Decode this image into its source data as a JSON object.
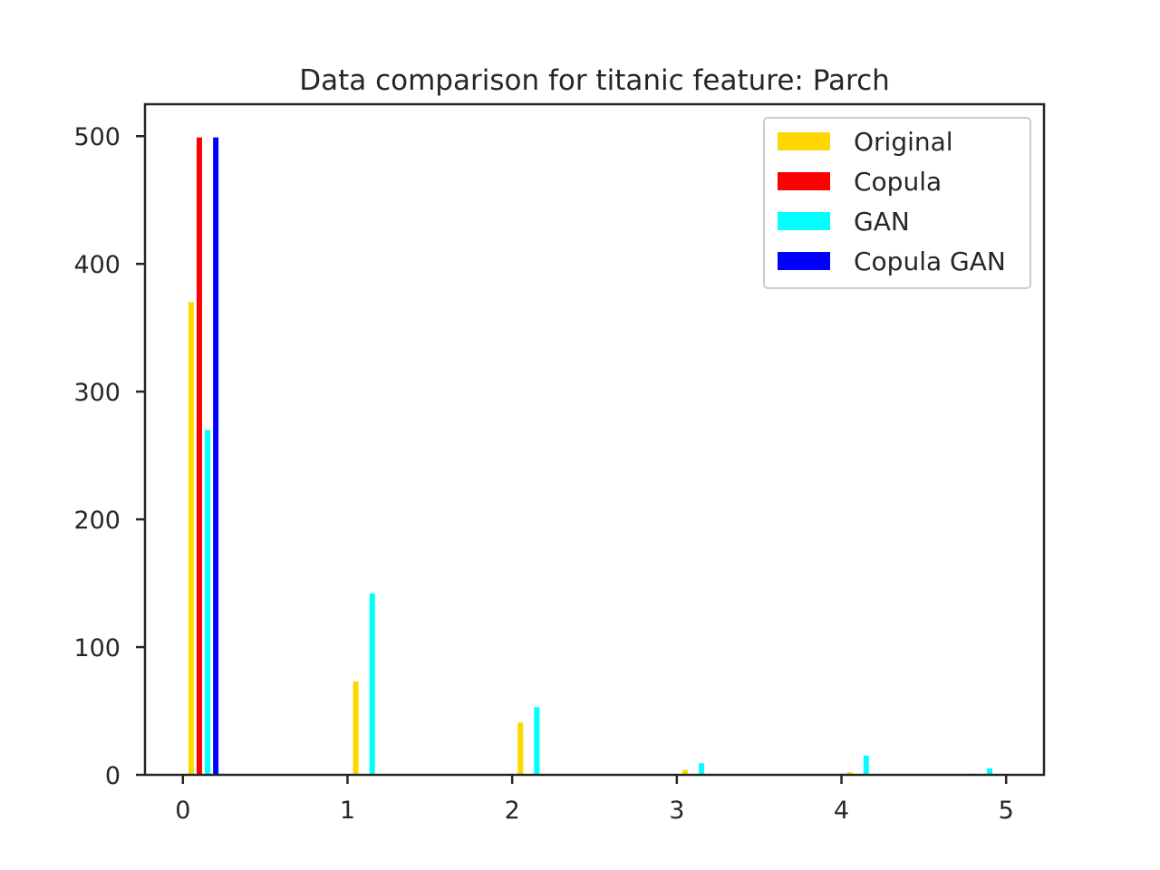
{
  "chart_data": {
    "type": "bar",
    "title": "Data comparison for titanic feature: Parch",
    "xlabel": "",
    "ylabel": "",
    "xlim": [
      -0.23,
      5.23
    ],
    "ylim": [
      0,
      525
    ],
    "x_ticks": [
      0,
      1,
      2,
      3,
      4,
      5
    ],
    "y_ticks": [
      0,
      100,
      200,
      300,
      400,
      500
    ],
    "grid": false,
    "legend_position": "top-right",
    "series": [
      {
        "name": "Original",
        "color": "#FFD700",
        "points": [
          {
            "x": 0.05,
            "y": 370
          },
          {
            "x": 1.05,
            "y": 73
          },
          {
            "x": 2.05,
            "y": 41
          },
          {
            "x": 3.05,
            "y": 4
          },
          {
            "x": 4.05,
            "y": 2
          },
          {
            "x": 4.8,
            "y": 1
          }
        ]
      },
      {
        "name": "Copula",
        "color": "#FF0000",
        "points": [
          {
            "x": 0.1,
            "y": 499
          }
        ]
      },
      {
        "name": "GAN",
        "color": "#00FFFF",
        "points": [
          {
            "x": 0.15,
            "y": 270
          },
          {
            "x": 1.15,
            "y": 142
          },
          {
            "x": 2.15,
            "y": 53
          },
          {
            "x": 3.15,
            "y": 9
          },
          {
            "x": 4.15,
            "y": 15
          },
          {
            "x": 4.9,
            "y": 5
          }
        ]
      },
      {
        "name": "Copula GAN",
        "color": "#0000FF",
        "points": [
          {
            "x": 0.2,
            "y": 499
          }
        ]
      }
    ]
  }
}
